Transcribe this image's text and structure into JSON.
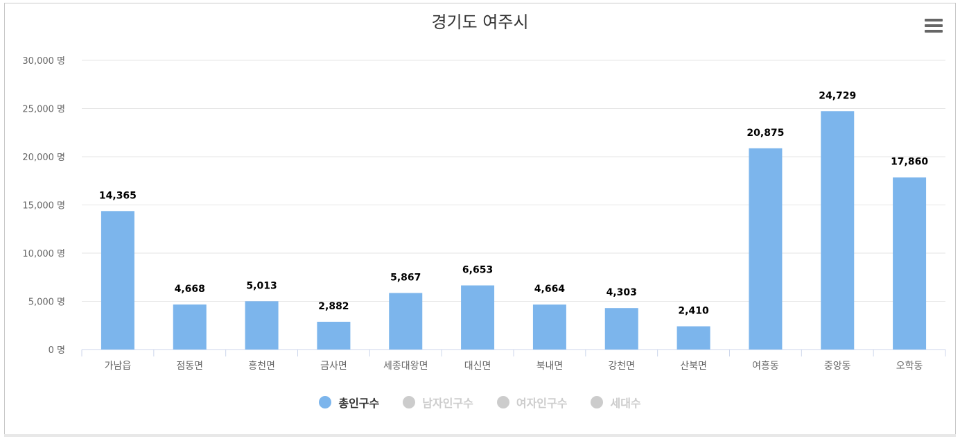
{
  "chart_data": {
    "type": "bar",
    "title": "경기도 여주시",
    "categories": [
      "가남읍",
      "점동면",
      "흥천면",
      "금사면",
      "세종대왕면",
      "대신면",
      "북내면",
      "강천면",
      "산북면",
      "여흥동",
      "중앙동",
      "오학동"
    ],
    "series": [
      {
        "name": "총인구수",
        "values": [
          14365,
          4668,
          5013,
          2882,
          5867,
          6653,
          4664,
          4303,
          2410,
          20875,
          24729,
          17860
        ],
        "color": "#7cb5ec",
        "visible": true
      }
    ],
    "data_labels": [
      "14,365",
      "4,668",
      "5,013",
      "2,882",
      "5,867",
      "6,653",
      "4,664",
      "4,303",
      "2,410",
      "20,875",
      "24,729",
      "17,860"
    ],
    "yticks": [
      0,
      5000,
      10000,
      15000,
      20000,
      25000,
      30000
    ],
    "ytick_labels": [
      "0 명",
      "5,000 명",
      "10,000 명",
      "15,000 명",
      "20,000 명",
      "25,000 명",
      "30,000 명"
    ],
    "ylim": [
      0,
      30000
    ],
    "grid": true,
    "legend_position": "bottom-center"
  },
  "legend": [
    {
      "label": "총인구수",
      "color": "#7cb5ec",
      "active": true
    },
    {
      "label": "남자인구수",
      "color": "#cccccc",
      "active": false
    },
    {
      "label": "여자인구수",
      "color": "#cccccc",
      "active": false
    },
    {
      "label": "세대수",
      "color": "#cccccc",
      "active": false
    }
  ],
  "menu_icon": "hamburger-menu-icon"
}
